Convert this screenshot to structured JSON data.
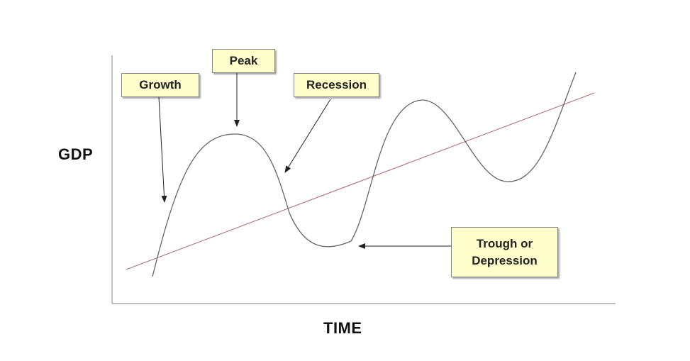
{
  "diagram": {
    "ylabel": "GDP",
    "xlabel": "TIME",
    "labels": {
      "growth": "Growth",
      "peak": "Peak",
      "recession": "Recession",
      "trough_line1": "Trough or",
      "trough_line2": "Depression"
    },
    "colors": {
      "curve": "#666666",
      "trend": "#b07070",
      "axes": "#999999",
      "callout_fill": "#ffffcc"
    }
  }
}
